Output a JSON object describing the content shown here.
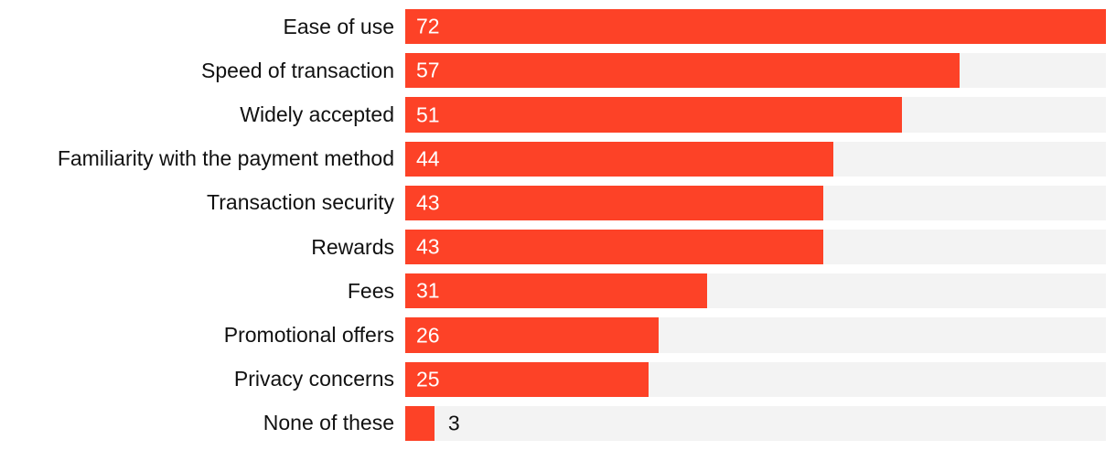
{
  "chart_data": {
    "type": "bar",
    "orientation": "horizontal",
    "title": "",
    "xlabel": "",
    "ylabel": "",
    "xlim": [
      0,
      72
    ],
    "legend": false,
    "gridlines": false,
    "value_label_position": "inside-start, outside-end for short bars",
    "categories": [
      "Ease of use",
      "Speed of transaction",
      "Widely accepted",
      "Familiarity with the payment method",
      "Transaction security",
      "Rewards",
      "Fees",
      "Promotional offers",
      "Privacy concerns",
      "None of these"
    ],
    "values": [
      72,
      57,
      51,
      44,
      43,
      43,
      31,
      26,
      25,
      3
    ],
    "colors": {
      "bar": "#FD4227",
      "track": "#F3F3F3",
      "category_text": "#111111",
      "value_inside": "#FFFFFF",
      "value_outside": "#111111",
      "background": "#FFFFFF"
    }
  }
}
